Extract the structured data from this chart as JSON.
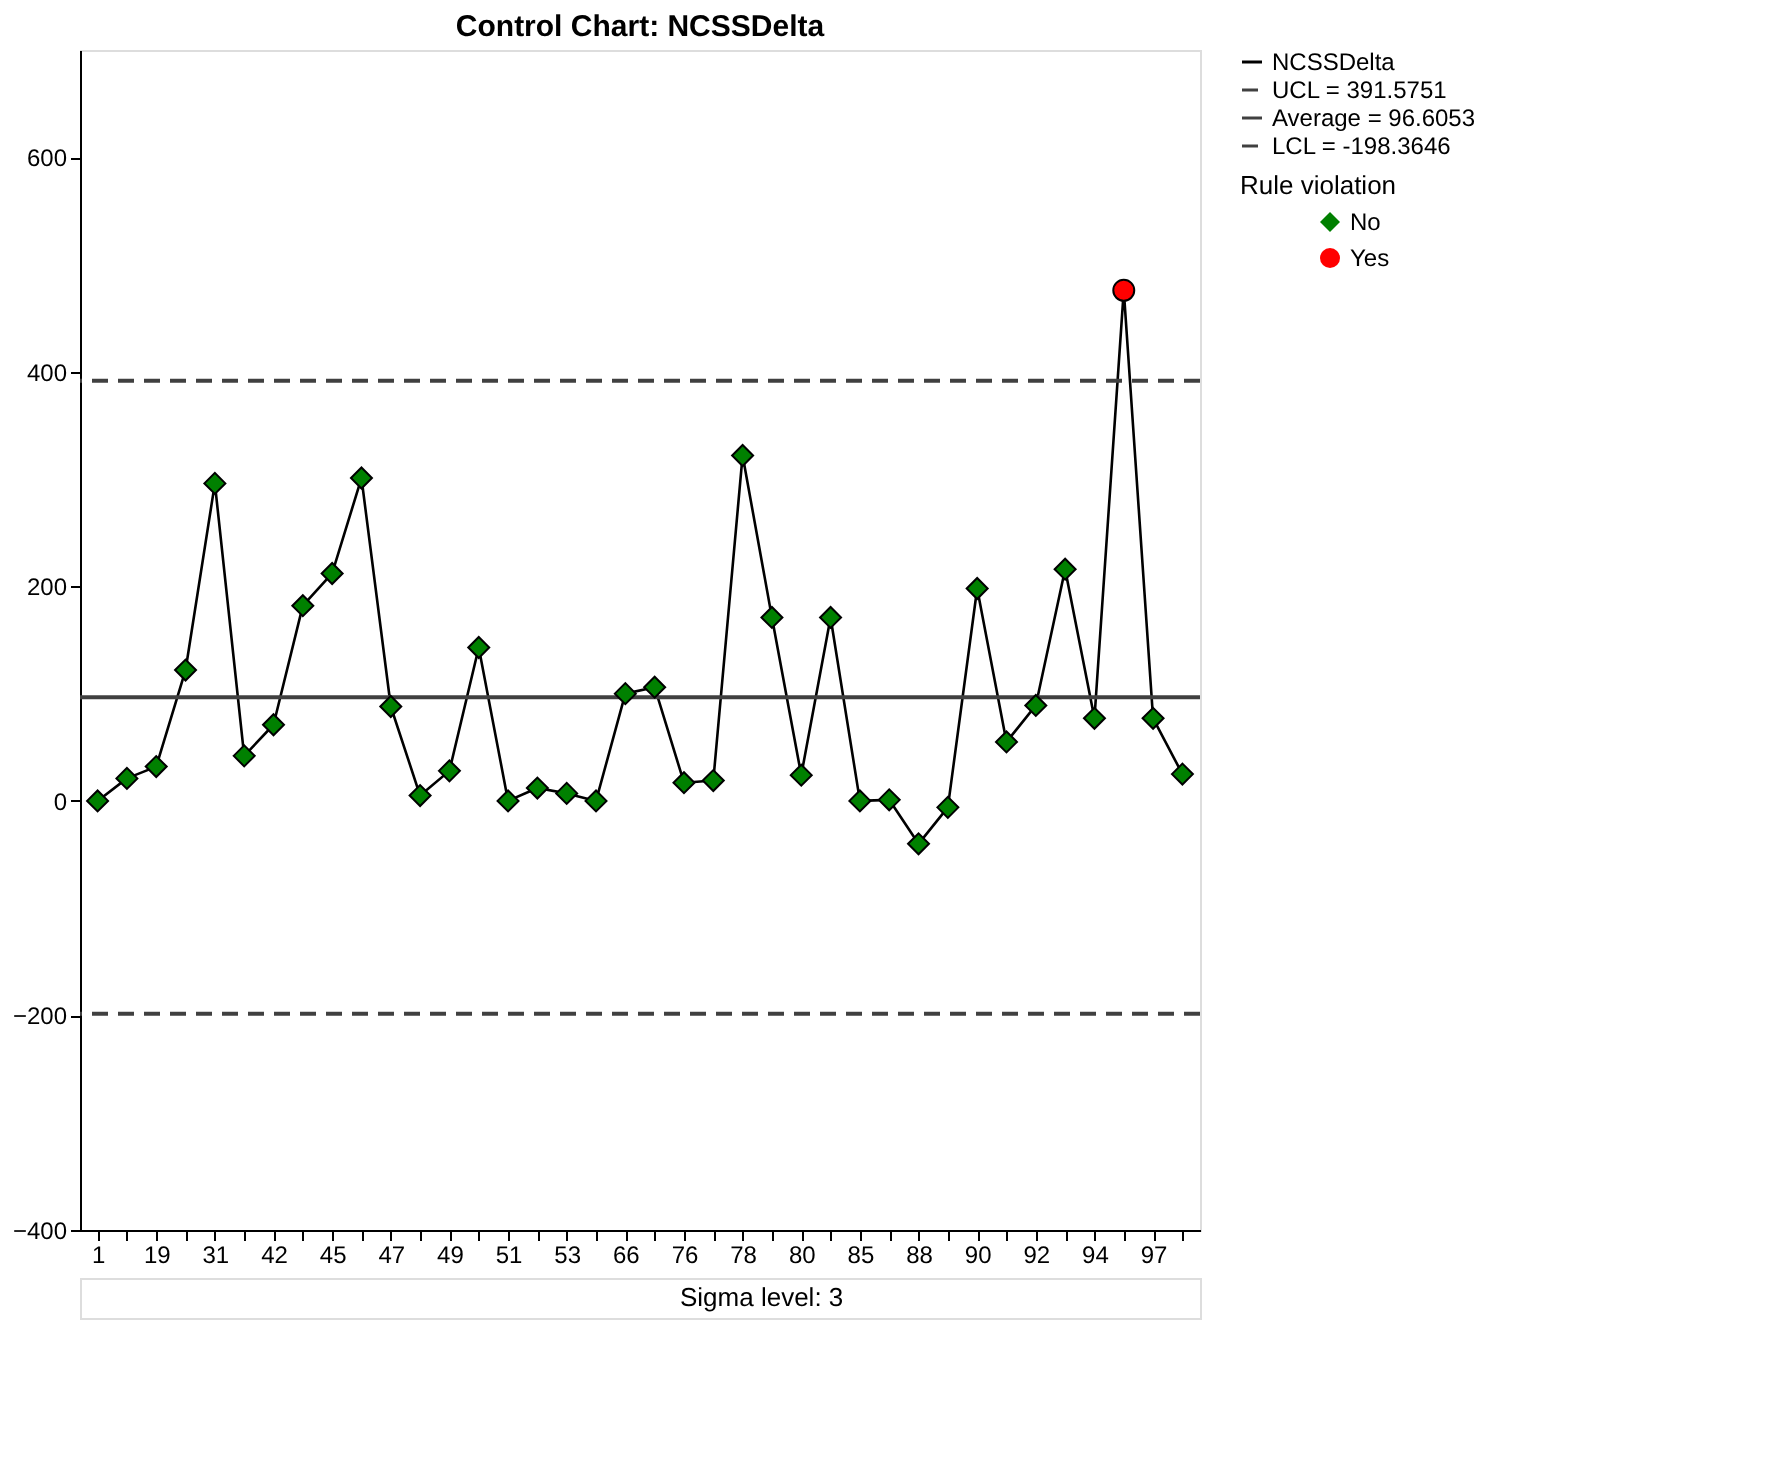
{
  "chart_data": {
    "type": "line",
    "title": "Control Chart: NCSSDelta",
    "categories": [
      "1",
      null,
      "19",
      null,
      "31",
      null,
      "42",
      null,
      "45",
      null,
      "47",
      null,
      "49",
      null,
      "51",
      null,
      "53",
      null,
      "66",
      null,
      "76",
      null,
      "78",
      null,
      "80",
      null,
      "85",
      null,
      "88",
      null,
      "90",
      null,
      "92",
      null,
      "94",
      null,
      "97",
      null
    ],
    "series": [
      {
        "name": "NCSSDelta",
        "type": "line",
        "color": "#000000",
        "marker": "none",
        "line_style": "solid",
        "values": [
          0,
          21,
          32,
          122,
          296,
          42,
          71,
          182,
          212,
          301,
          88,
          5,
          28,
          143,
          0,
          12,
          7,
          0,
          100,
          106,
          17,
          19,
          322,
          171,
          24,
          171,
          0,
          1,
          -40,
          -6,
          198,
          55,
          89,
          216,
          77,
          476,
          77,
          25
        ]
      },
      {
        "name": "No",
        "type": "scatter",
        "color": "#008000",
        "marker": "diamond",
        "values": [
          0,
          21,
          32,
          122,
          296,
          42,
          71,
          182,
          212,
          301,
          88,
          5,
          28,
          143,
          0,
          12,
          7,
          0,
          100,
          106,
          17,
          19,
          322,
          171,
          24,
          171,
          0,
          1,
          -40,
          -6,
          198,
          55,
          89,
          216,
          77,
          null,
          77,
          25
        ]
      },
      {
        "name": "Yes",
        "type": "scatter",
        "color": "#ff0000",
        "marker": "circle",
        "values": [
          null,
          null,
          null,
          null,
          null,
          null,
          null,
          null,
          null,
          null,
          null,
          null,
          null,
          null,
          null,
          null,
          null,
          null,
          null,
          null,
          null,
          null,
          null,
          null,
          null,
          null,
          null,
          null,
          null,
          null,
          null,
          null,
          null,
          null,
          null,
          476,
          null,
          null
        ]
      }
    ],
    "ref_lines": [
      {
        "axis": "y",
        "value": 391.5751,
        "label": "UCL = 391.5751",
        "line_style": "dashed",
        "color": "#404040"
      },
      {
        "axis": "y",
        "value": 96.6053,
        "label": "Average = 96.6053",
        "line_style": "solid",
        "color": "#404040"
      },
      {
        "axis": "y",
        "value": -198.3646,
        "label": "LCL = -198.3646",
        "line_style": "dashed",
        "color": "#404040"
      }
    ],
    "legend_title": "Rule violation",
    "legend": "right",
    "ylim": [
      -400,
      700
    ],
    "yticks": [
      -400,
      -200,
      0,
      200,
      400,
      600
    ],
    "grid": false,
    "annotations": [
      "Sigma level:          3"
    ]
  }
}
